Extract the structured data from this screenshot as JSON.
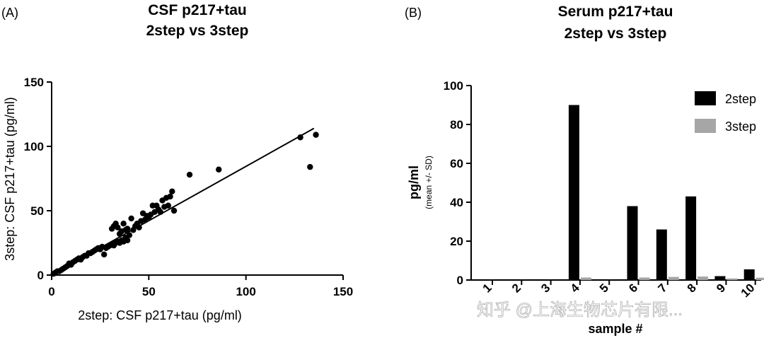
{
  "chart_data": [
    {
      "type": "scatter",
      "panel_label": "(A)",
      "title_lines": [
        "CSF p217+tau",
        "2step vs 3step"
      ],
      "xlabel": "2step: CSF p217+tau (pg/ml)",
      "ylabel": "3step: CSF p217+tau (pg/ml)",
      "xlim": [
        0,
        150
      ],
      "ylim": [
        0,
        150
      ],
      "xticks": [
        "0",
        "50",
        "100",
        "150"
      ],
      "yticks": [
        "0",
        "50",
        "100",
        "150"
      ],
      "grid": false,
      "points": [
        {
          "x": 1,
          "y": 1
        },
        {
          "x": 2,
          "y": 2
        },
        {
          "x": 3,
          "y": 3
        },
        {
          "x": 4,
          "y": 3
        },
        {
          "x": 5,
          "y": 4
        },
        {
          "x": 6,
          "y": 5
        },
        {
          "x": 7,
          "y": 6
        },
        {
          "x": 8,
          "y": 7
        },
        {
          "x": 9,
          "y": 9
        },
        {
          "x": 10,
          "y": 8
        },
        {
          "x": 11,
          "y": 10
        },
        {
          "x": 12,
          "y": 11
        },
        {
          "x": 13,
          "y": 12
        },
        {
          "x": 14,
          "y": 13
        },
        {
          "x": 15,
          "y": 12
        },
        {
          "x": 16,
          "y": 14
        },
        {
          "x": 17,
          "y": 15
        },
        {
          "x": 18,
          "y": 15
        },
        {
          "x": 19,
          "y": 17
        },
        {
          "x": 20,
          "y": 17
        },
        {
          "x": 21,
          "y": 18
        },
        {
          "x": 22,
          "y": 19
        },
        {
          "x": 23,
          "y": 20
        },
        {
          "x": 24,
          "y": 21
        },
        {
          "x": 25,
          "y": 20
        },
        {
          "x": 26,
          "y": 22
        },
        {
          "x": 27,
          "y": 16
        },
        {
          "x": 28,
          "y": 21
        },
        {
          "x": 29,
          "y": 22
        },
        {
          "x": 30,
          "y": 23
        },
        {
          "x": 31,
          "y": 24
        },
        {
          "x": 32,
          "y": 23
        },
        {
          "x": 33,
          "y": 25
        },
        {
          "x": 34,
          "y": 26
        },
        {
          "x": 35,
          "y": 25
        },
        {
          "x": 36,
          "y": 27
        },
        {
          "x": 37,
          "y": 26
        },
        {
          "x": 38,
          "y": 29
        },
        {
          "x": 39,
          "y": 27
        },
        {
          "x": 40,
          "y": 31
        },
        {
          "x": 31,
          "y": 36
        },
        {
          "x": 32,
          "y": 38
        },
        {
          "x": 33,
          "y": 40
        },
        {
          "x": 34,
          "y": 37
        },
        {
          "x": 35,
          "y": 32
        },
        {
          "x": 36,
          "y": 34
        },
        {
          "x": 37,
          "y": 40
        },
        {
          "x": 38,
          "y": 35
        },
        {
          "x": 39,
          "y": 36
        },
        {
          "x": 41,
          "y": 44
        },
        {
          "x": 42,
          "y": 35
        },
        {
          "x": 43,
          "y": 38
        },
        {
          "x": 44,
          "y": 40
        },
        {
          "x": 45,
          "y": 37
        },
        {
          "x": 46,
          "y": 42
        },
        {
          "x": 47,
          "y": 48
        },
        {
          "x": 48,
          "y": 43
        },
        {
          "x": 49,
          "y": 46
        },
        {
          "x": 50,
          "y": 45
        },
        {
          "x": 51,
          "y": 47
        },
        {
          "x": 52,
          "y": 54
        },
        {
          "x": 53,
          "y": 49
        },
        {
          "x": 54,
          "y": 54
        },
        {
          "x": 55,
          "y": 51
        },
        {
          "x": 56,
          "y": 49
        },
        {
          "x": 57,
          "y": 58
        },
        {
          "x": 58,
          "y": 53
        },
        {
          "x": 59,
          "y": 60
        },
        {
          "x": 60,
          "y": 54
        },
        {
          "x": 61,
          "y": 61
        },
        {
          "x": 62,
          "y": 65
        },
        {
          "x": 63,
          "y": 50
        },
        {
          "x": 71,
          "y": 78
        },
        {
          "x": 86,
          "y": 82
        },
        {
          "x": 128,
          "y": 107
        },
        {
          "x": 133,
          "y": 84
        },
        {
          "x": 136,
          "y": 109
        }
      ],
      "fit_line": {
        "x": [
          0,
          135
        ],
        "y": [
          0,
          114
        ]
      }
    },
    {
      "type": "bar",
      "panel_label": "(B)",
      "title_lines": [
        "Serum p217+tau",
        "2step vs 3step"
      ],
      "xlabel": "sample #",
      "ylabel": "pg/ml",
      "ylabel_sub": "(mean +/- SD)",
      "ylim": [
        0,
        100
      ],
      "yticks": [
        "0",
        "20",
        "40",
        "60",
        "80",
        "100"
      ],
      "categories": [
        "1",
        "2",
        "3",
        "4",
        "5",
        "6",
        "7",
        "8",
        "9",
        "10"
      ],
      "grid": false,
      "legend_position": "top-right",
      "series": [
        {
          "name": "2step",
          "color": "#000000",
          "values": [
            0,
            0,
            0,
            90,
            0,
            38,
            26,
            43,
            2,
            5.5
          ]
        },
        {
          "name": "3step",
          "color": "#a6a6a6",
          "values": [
            0,
            0,
            0,
            1.3,
            0,
            1.3,
            1.6,
            1.8,
            0.8,
            1.2
          ]
        }
      ]
    }
  ],
  "watermark": "知乎 @上海生物芯片有限..."
}
